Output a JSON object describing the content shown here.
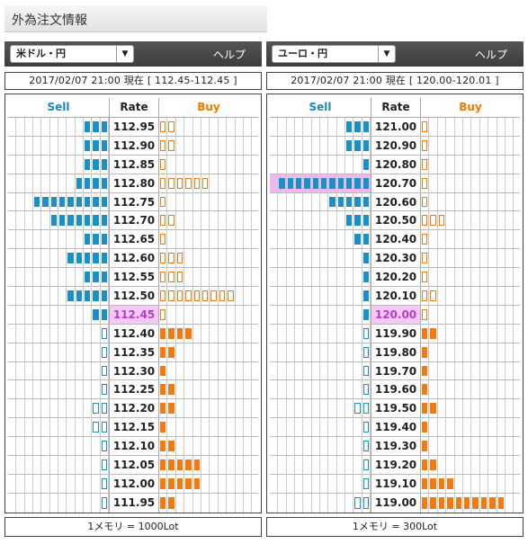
{
  "title": "外為注文情報",
  "colors": {
    "sell": "#1a90c8",
    "buy": "#f47a10",
    "current_bg": "#f6c8f6"
  },
  "panels": [
    {
      "pair": "米ドル・円",
      "help": "ヘルプ",
      "date": "2017/02/07  21:00 現在 [ 112.45-112.45 ]",
      "sell_header": "Sell",
      "rate_header": "Rate",
      "buy_header": "Buy",
      "footer": "1メモリ = 1000Lot",
      "highlight_sell_row": -1,
      "rows": [
        {
          "rate": "112.95",
          "sell": 3,
          "sell_type": "f",
          "buy": 2,
          "buy_type": "o",
          "current": false
        },
        {
          "rate": "112.90",
          "sell": 3,
          "sell_type": "f",
          "buy": 2,
          "buy_type": "o",
          "current": false
        },
        {
          "rate": "112.85",
          "sell": 3,
          "sell_type": "f",
          "buy": 1,
          "buy_type": "o",
          "current": false
        },
        {
          "rate": "112.80",
          "sell": 4,
          "sell_type": "f",
          "buy": 6,
          "buy_type": "o",
          "current": false
        },
        {
          "rate": "112.75",
          "sell": 9,
          "sell_type": "f",
          "buy": 1,
          "buy_type": "o",
          "current": false
        },
        {
          "rate": "112.70",
          "sell": 7,
          "sell_type": "f",
          "buy": 2,
          "buy_type": "o",
          "current": false
        },
        {
          "rate": "112.65",
          "sell": 3,
          "sell_type": "f",
          "buy": 1,
          "buy_type": "o",
          "current": false
        },
        {
          "rate": "112.60",
          "sell": 5,
          "sell_type": "f",
          "buy": 3,
          "buy_type": "o",
          "current": false
        },
        {
          "rate": "112.55",
          "sell": 3,
          "sell_type": "f",
          "buy": 3,
          "buy_type": "o",
          "current": false
        },
        {
          "rate": "112.50",
          "sell": 5,
          "sell_type": "f",
          "buy": 9,
          "buy_type": "o",
          "current": false
        },
        {
          "rate": "112.45",
          "sell": 2,
          "sell_type": "f",
          "buy": 1,
          "buy_type": "o",
          "current": true
        },
        {
          "rate": "112.40",
          "sell": 1,
          "sell_type": "o",
          "buy": 4,
          "buy_type": "f",
          "current": false
        },
        {
          "rate": "112.35",
          "sell": 1,
          "sell_type": "o",
          "buy": 2,
          "buy_type": "f",
          "current": false
        },
        {
          "rate": "112.30",
          "sell": 1,
          "sell_type": "o",
          "buy": 1,
          "buy_type": "f",
          "current": false
        },
        {
          "rate": "112.25",
          "sell": 1,
          "sell_type": "o",
          "buy": 2,
          "buy_type": "f",
          "current": false
        },
        {
          "rate": "112.20",
          "sell": 2,
          "sell_type": "o",
          "buy": 2,
          "buy_type": "f",
          "current": false
        },
        {
          "rate": "112.15",
          "sell": 2,
          "sell_type": "o",
          "buy": 1,
          "buy_type": "f",
          "current": false
        },
        {
          "rate": "112.10",
          "sell": 1,
          "sell_type": "o",
          "buy": 2,
          "buy_type": "f",
          "current": false
        },
        {
          "rate": "112.05",
          "sell": 1,
          "sell_type": "o",
          "buy": 5,
          "buy_type": "f",
          "current": false
        },
        {
          "rate": "112.00",
          "sell": 1,
          "sell_type": "o",
          "buy": 5,
          "buy_type": "f",
          "current": false
        },
        {
          "rate": "111.95",
          "sell": 1,
          "sell_type": "o",
          "buy": 2,
          "buy_type": "f",
          "current": false
        }
      ]
    },
    {
      "pair": "ユーロ・円",
      "help": "ヘルプ",
      "date": "2017/02/07  21:00 現在 [ 120.00-120.01 ]",
      "sell_header": "Sell",
      "rate_header": "Rate",
      "buy_header": "Buy",
      "footer": "1メモリ = 300Lot",
      "highlight_sell_row": 3,
      "rows": [
        {
          "rate": "121.00",
          "sell": 3,
          "sell_type": "f",
          "buy": 1,
          "buy_type": "o",
          "current": false
        },
        {
          "rate": "120.90",
          "sell": 3,
          "sell_type": "f",
          "buy": 1,
          "buy_type": "o",
          "current": false
        },
        {
          "rate": "120.80",
          "sell": 1,
          "sell_type": "f",
          "buy": 1,
          "buy_type": "o",
          "current": false
        },
        {
          "rate": "120.70",
          "sell": 11,
          "sell_type": "f",
          "buy": 1,
          "buy_type": "o",
          "current": false
        },
        {
          "rate": "120.60",
          "sell": 5,
          "sell_type": "f",
          "buy": 1,
          "buy_type": "o",
          "current": false
        },
        {
          "rate": "120.50",
          "sell": 3,
          "sell_type": "f",
          "buy": 3,
          "buy_type": "o",
          "current": false
        },
        {
          "rate": "120.40",
          "sell": 2,
          "sell_type": "f",
          "buy": 1,
          "buy_type": "o",
          "current": false
        },
        {
          "rate": "120.30",
          "sell": 1,
          "sell_type": "f",
          "buy": 1,
          "buy_type": "o",
          "current": false
        },
        {
          "rate": "120.20",
          "sell": 1,
          "sell_type": "f",
          "buy": 1,
          "buy_type": "o",
          "current": false
        },
        {
          "rate": "120.10",
          "sell": 1,
          "sell_type": "f",
          "buy": 2,
          "buy_type": "o",
          "current": false
        },
        {
          "rate": "120.00",
          "sell": 1,
          "sell_type": "f",
          "buy": 1,
          "buy_type": "o",
          "current": true
        },
        {
          "rate": "119.90",
          "sell": 1,
          "sell_type": "o",
          "buy": 2,
          "buy_type": "f",
          "current": false
        },
        {
          "rate": "119.80",
          "sell": 1,
          "sell_type": "o",
          "buy": 1,
          "buy_type": "f",
          "current": false
        },
        {
          "rate": "119.70",
          "sell": 1,
          "sell_type": "o",
          "buy": 1,
          "buy_type": "f",
          "current": false
        },
        {
          "rate": "119.60",
          "sell": 1,
          "sell_type": "o",
          "buy": 1,
          "buy_type": "f",
          "current": false
        },
        {
          "rate": "119.50",
          "sell": 2,
          "sell_type": "o",
          "buy": 2,
          "buy_type": "f",
          "current": false
        },
        {
          "rate": "119.40",
          "sell": 1,
          "sell_type": "o",
          "buy": 1,
          "buy_type": "f",
          "current": false
        },
        {
          "rate": "119.30",
          "sell": 1,
          "sell_type": "o",
          "buy": 1,
          "buy_type": "f",
          "current": false
        },
        {
          "rate": "119.20",
          "sell": 1,
          "sell_type": "o",
          "buy": 2,
          "buy_type": "f",
          "current": false
        },
        {
          "rate": "119.10",
          "sell": 1,
          "sell_type": "o",
          "buy": 4,
          "buy_type": "f",
          "current": false
        },
        {
          "rate": "119.00",
          "sell": 2,
          "sell_type": "o",
          "buy": 10,
          "buy_type": "f",
          "current": false
        }
      ]
    }
  ]
}
